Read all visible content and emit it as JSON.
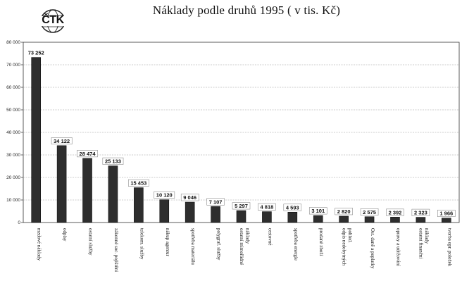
{
  "title": "Náklady podle druhů 1995 ( v tis. Kč)",
  "logo_text": "ČTK",
  "chart_data": {
    "type": "bar",
    "title": "Náklady podle druhů 1995 ( v tis. Kč)",
    "xlabel": "",
    "ylabel": "",
    "ylim": [
      0,
      80000
    ],
    "yticks": [
      "0",
      "10 000",
      "20 000",
      "30 000",
      "40 000",
      "50 000",
      "60 000",
      "70 000",
      "80 000"
    ],
    "grid": true,
    "categories": [
      [
        "mzdové náklady"
      ],
      [
        "odpisy"
      ],
      [
        "ostatní služby"
      ],
      [
        "zákonné soc. pojištění"
      ],
      [
        "telekom. služby"
      ],
      [
        "nákup agentur"
      ],
      [
        "spotřeba materiálu"
      ],
      [
        "polygraf. služby"
      ],
      [
        "ostatní mimořádné",
        "náklady"
      ],
      [
        "cestovné"
      ],
      [
        "spotřeba energie"
      ],
      [
        "prodané zboží"
      ],
      [
        "odpis nedobytných",
        "pohled."
      ],
      [
        "Ost. daně a poplatky"
      ],
      [
        "opravy a udržování"
      ],
      [
        "ostatní finanční",
        "náklady"
      ],
      [
        "tvorba opr. položek"
      ]
    ],
    "values": [
      73252,
      34122,
      28474,
      25133,
      15453,
      10120,
      9046,
      7107,
      5297,
      4818,
      4593,
      3101,
      2820,
      2575,
      2392,
      2323,
      1966
    ],
    "value_labels": [
      "73 252",
      "34 122",
      "28 474",
      "25 133",
      "15 453",
      "10 120",
      "9 046",
      "7 107",
      "5 297",
      "4 818",
      "4 593",
      "3 101",
      "2 820",
      "2 575",
      "2 392",
      "2 323",
      "1 966"
    ],
    "colors": {
      "bar": "#2e2e2e",
      "grid": "#9a9a9a",
      "frame": "#333333"
    }
  }
}
